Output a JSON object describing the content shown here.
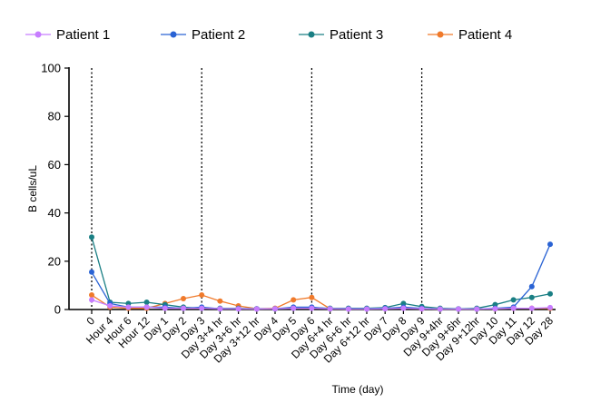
{
  "chart_data": {
    "type": "line",
    "xlabel": "Time (day)",
    "ylabel": "B cells/uL",
    "ylim": [
      0,
      100
    ],
    "yticks": [
      0,
      20,
      40,
      60,
      80,
      100
    ],
    "categories": [
      "0",
      "Hour 4",
      "Hour 6",
      "Hour 12",
      "Day 1",
      "Day 2",
      "Day 3",
      "Day 3+4 hr",
      "Day 3+6 hr",
      "Day 3+12 hr",
      "Day 4",
      "Day 5",
      "Day 6",
      "Day 6+4 hr",
      "Day 6+6 hr",
      "Day 6+12 hr",
      "Day 7",
      "Day 8",
      "Day 9",
      "Day 9+4hr",
      "Day 9+6hr",
      "Day 9+12hr",
      "Day 10",
      "Day 11",
      "Day 12",
      "Day 28"
    ],
    "dosing_markers": [
      "0",
      "Day 3",
      "Day 6",
      "Day 9"
    ],
    "legend_position": "top",
    "grid": false,
    "series": [
      {
        "name": "Patient 1",
        "color": "#c77dff",
        "values": [
          4,
          1.5,
          1,
          1,
          0.5,
          0.5,
          0.5,
          0.3,
          0.3,
          0.2,
          0.3,
          0.5,
          0.5,
          0.3,
          0.2,
          0.2,
          0.3,
          0.5,
          0.3,
          0.2,
          0.2,
          0.2,
          0.3,
          0.5,
          0.5,
          0.8
        ]
      },
      {
        "name": "Patient 2",
        "color": "#2a63d4",
        "values": [
          15.5,
          2.5,
          1,
          1,
          1,
          0.5,
          1,
          0.3,
          0.3,
          0.3,
          0.3,
          1,
          1,
          0.3,
          0.3,
          0.3,
          0.5,
          1,
          0.5,
          0.2,
          0.2,
          0.2,
          0.5,
          1,
          9.5,
          27
        ]
      },
      {
        "name": "Patient 3",
        "color": "#1a7f84",
        "values": [
          30,
          3,
          2.5,
          3,
          2,
          1,
          0.5,
          0.5,
          0.5,
          0.3,
          0.3,
          0.5,
          0.8,
          0.5,
          0.5,
          0.5,
          0.8,
          2.5,
          1.2,
          0.5,
          0.3,
          0.5,
          2,
          4,
          5,
          6.5
        ]
      },
      {
        "name": "Patient 4",
        "color": "#f07a2b",
        "values": [
          6,
          1,
          0.5,
          0.5,
          2.5,
          4.5,
          6,
          3.5,
          1.5,
          0.3,
          0.5,
          4,
          5,
          0.3,
          0.3,
          0.3,
          0.5,
          0.8,
          0.3,
          0.2,
          0.2,
          0.2,
          0.3,
          0.5,
          0.5,
          0.5
        ]
      }
    ]
  }
}
